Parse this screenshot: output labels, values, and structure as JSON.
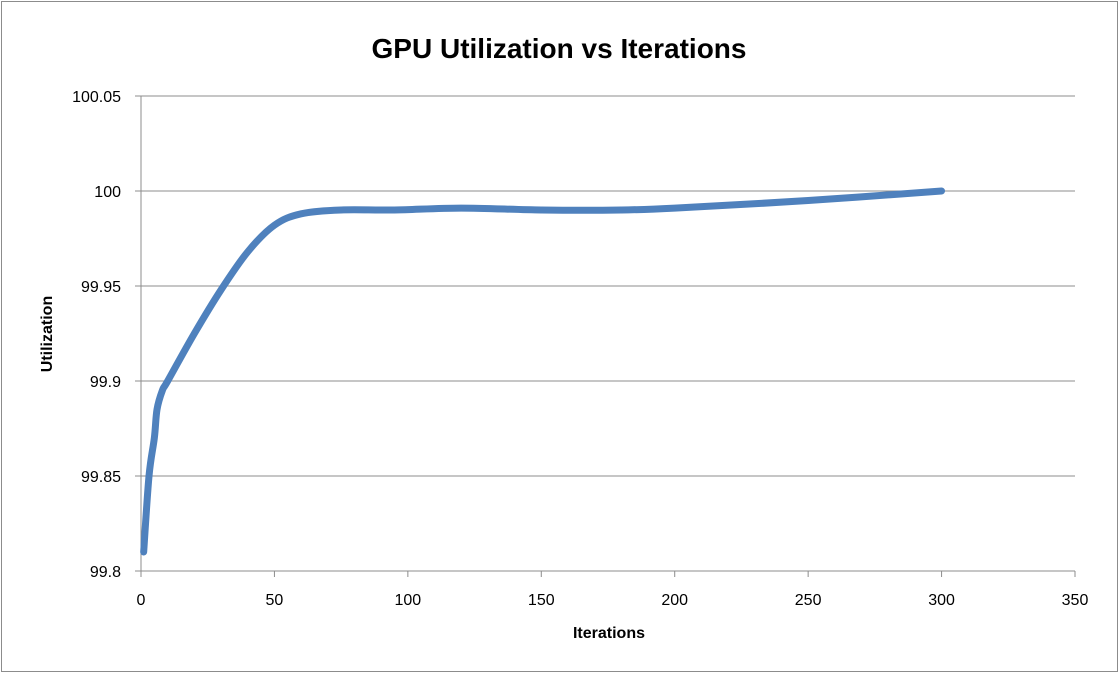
{
  "chart_data": {
    "type": "line",
    "title": "GPU Utilization vs Iterations",
    "xlabel": "Iterations",
    "ylabel": "Utilization",
    "xlim": [
      0,
      350
    ],
    "ylim": [
      99.8,
      100.05
    ],
    "x_ticks": [
      "0",
      "50",
      "100",
      "150",
      "200",
      "250",
      "300",
      "350"
    ],
    "y_ticks": [
      "99.8",
      "99.85",
      "99.9",
      "99.95",
      "100",
      "100.05"
    ],
    "grid": "horizontal",
    "legend": "none",
    "series": [
      {
        "color": "#4F81BD",
        "x": [
          1,
          3,
          5,
          6,
          8,
          10,
          20,
          30,
          40,
          50,
          60,
          75,
          95,
          120,
          150,
          180,
          200,
          250,
          300
        ],
        "y": [
          99.81,
          99.85,
          99.87,
          99.885,
          99.895,
          99.9,
          99.925,
          99.948,
          99.968,
          99.982,
          99.988,
          99.99,
          99.99,
          99.991,
          99.99,
          99.99,
          99.991,
          99.995,
          100.0
        ]
      }
    ]
  }
}
